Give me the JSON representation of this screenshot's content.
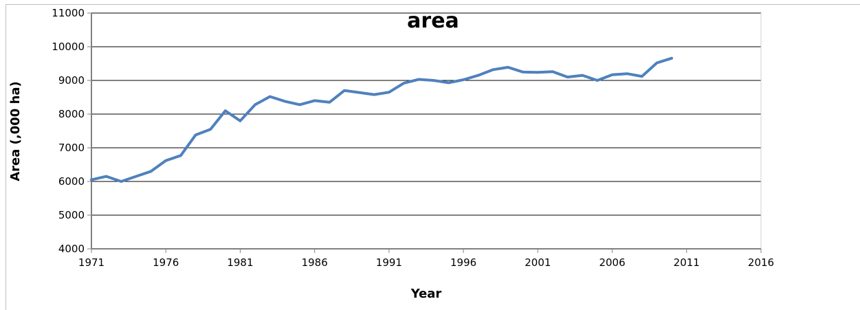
{
  "chart_data": {
    "type": "line",
    "title": "area",
    "xlabel": "Year",
    "ylabel": "Area (,000 ha)",
    "xlim": [
      1971,
      2016
    ],
    "ylim": [
      4000,
      11000
    ],
    "x_ticks": [
      1971,
      1976,
      1981,
      1986,
      1991,
      1996,
      2001,
      2006,
      2011,
      2016
    ],
    "y_ticks": [
      4000,
      5000,
      6000,
      7000,
      8000,
      9000,
      10000,
      11000
    ],
    "grid": true,
    "legend": "none",
    "series": [
      {
        "color": "#4f81bd",
        "x": [
          1971,
          1972,
          1973,
          1974,
          1975,
          1976,
          1977,
          1978,
          1979,
          1980,
          1981,
          1982,
          1983,
          1984,
          1985,
          1986,
          1987,
          1988,
          1989,
          1990,
          1991,
          1992,
          1993,
          1994,
          1995,
          1996,
          1997,
          1998,
          1999,
          2000,
          2001,
          2002,
          2003,
          2004,
          2005,
          2006,
          2007,
          2008,
          2009,
          2010
        ],
        "values": [
          6050,
          6150,
          6000,
          6150,
          6300,
          6620,
          6770,
          7380,
          7550,
          8100,
          7800,
          8280,
          8520,
          8380,
          8280,
          8400,
          8350,
          8700,
          8640,
          8580,
          8650,
          8920,
          9030,
          9000,
          8930,
          9020,
          9150,
          9320,
          9390,
          9250,
          9240,
          9260,
          9100,
          9150,
          9000,
          9170,
          9200,
          9120,
          9520,
          9660
        ]
      }
    ]
  }
}
